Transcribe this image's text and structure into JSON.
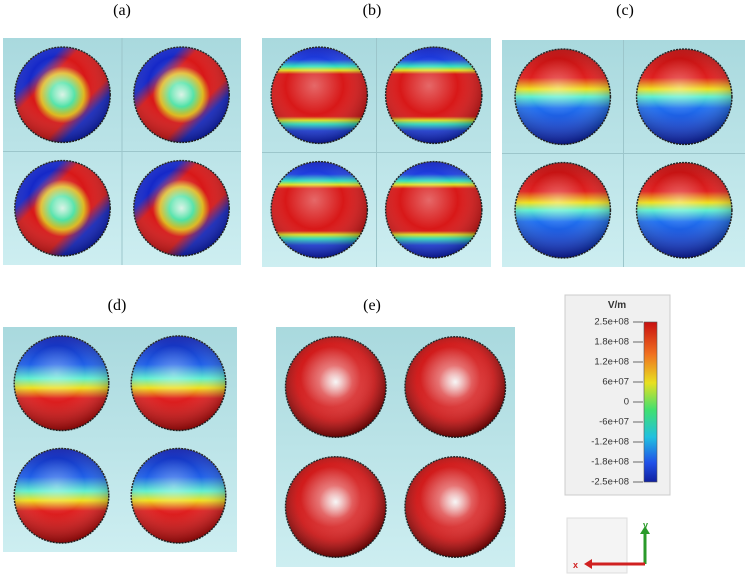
{
  "panels": [
    {
      "label": "(a)"
    },
    {
      "label": "(b)"
    },
    {
      "label": "(c)"
    },
    {
      "label": "(d)"
    },
    {
      "label": "(e)"
    }
  ],
  "colorbar": {
    "unit": "V/m",
    "ticks": [
      "2.5e+08",
      "1.8e+08",
      "1.2e+08",
      "6e+07",
      "0",
      "-6e+07",
      "-1.2e+08",
      "-1.8e+08",
      "-2.5e+08"
    ]
  },
  "axes": {
    "y": "y",
    "x": "x"
  }
}
